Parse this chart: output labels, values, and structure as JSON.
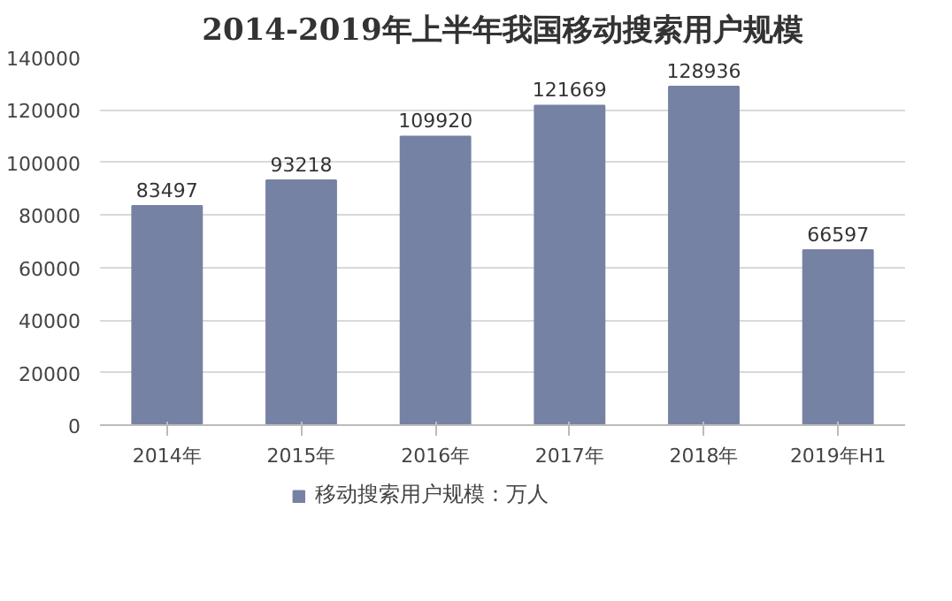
{
  "chart_data": {
    "type": "bar",
    "title": "2014-2019年上半年我国移动搜索用户规模",
    "categories": [
      "2014年",
      "2015年",
      "2016年",
      "2017年",
      "2018年",
      "2019年H1"
    ],
    "series": [
      {
        "name": "移动搜索用户规模：万人",
        "color": "#7682a4",
        "values": [
          83497,
          93218,
          109920,
          121669,
          128936,
          66597
        ]
      }
    ],
    "ylim": [
      0,
      140000
    ],
    "yticks": [
      0,
      20000,
      40000,
      60000,
      80000,
      100000,
      120000,
      140000
    ],
    "grid": "y",
    "legend": "bottom",
    "data_labels": true
  }
}
